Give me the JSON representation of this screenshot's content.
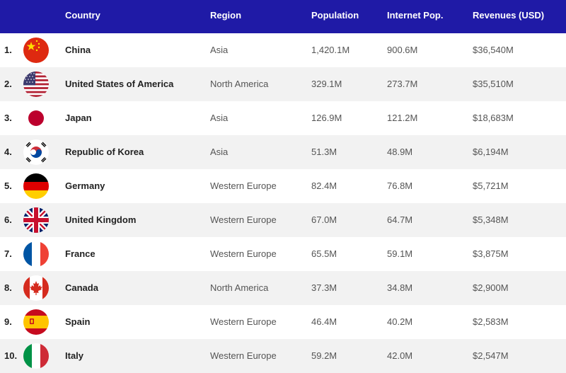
{
  "header": {
    "country": "Country",
    "region": "Region",
    "population": "Population",
    "internet_pop": "Internet Pop.",
    "revenues": "Revenues (USD)"
  },
  "rows": [
    {
      "rank": "1.",
      "country": "China",
      "region": "Asia",
      "population": "1,420.1M",
      "internet_pop": "900.6M",
      "revenues": "$36,540M",
      "flag_icon": "china-flag-icon"
    },
    {
      "rank": "2.",
      "country": "United States of America",
      "region": "North America",
      "population": "329.1M",
      "internet_pop": "273.7M",
      "revenues": "$35,510M",
      "flag_icon": "usa-flag-icon"
    },
    {
      "rank": "3.",
      "country": "Japan",
      "region": "Asia",
      "population": "126.9M",
      "internet_pop": "121.2M",
      "revenues": "$18,683M",
      "flag_icon": "japan-flag-icon"
    },
    {
      "rank": "4.",
      "country": "Republic of Korea",
      "region": "Asia",
      "population": "51.3M",
      "internet_pop": "48.9M",
      "revenues": "$6,194M",
      "flag_icon": "korea-flag-icon"
    },
    {
      "rank": "5.",
      "country": "Germany",
      "region": "Western Europe",
      "population": "82.4M",
      "internet_pop": "76.8M",
      "revenues": "$5,721M",
      "flag_icon": "germany-flag-icon"
    },
    {
      "rank": "6.",
      "country": "United Kingdom",
      "region": "Western Europe",
      "population": "67.0M",
      "internet_pop": "64.7M",
      "revenues": "$5,348M",
      "flag_icon": "uk-flag-icon"
    },
    {
      "rank": "7.",
      "country": "France",
      "region": "Western Europe",
      "population": "65.5M",
      "internet_pop": "59.1M",
      "revenues": "$3,875M",
      "flag_icon": "france-flag-icon"
    },
    {
      "rank": "8.",
      "country": "Canada",
      "region": "North America",
      "population": "37.3M",
      "internet_pop": "34.8M",
      "revenues": "$2,900M",
      "flag_icon": "canada-flag-icon"
    },
    {
      "rank": "9.",
      "country": "Spain",
      "region": "Western Europe",
      "population": "46.4M",
      "internet_pop": "40.2M",
      "revenues": "$2,583M",
      "flag_icon": "spain-flag-icon"
    },
    {
      "rank": "10.",
      "country": "Italy",
      "region": "Western Europe",
      "population": "59.2M",
      "internet_pop": "42.0M",
      "revenues": "$2,547M",
      "flag_icon": "italy-flag-icon"
    }
  ],
  "colors": {
    "header_bg": "#1f1aa6",
    "header_text": "#ffffff",
    "alt_row_bg": "#f2f2f2"
  }
}
